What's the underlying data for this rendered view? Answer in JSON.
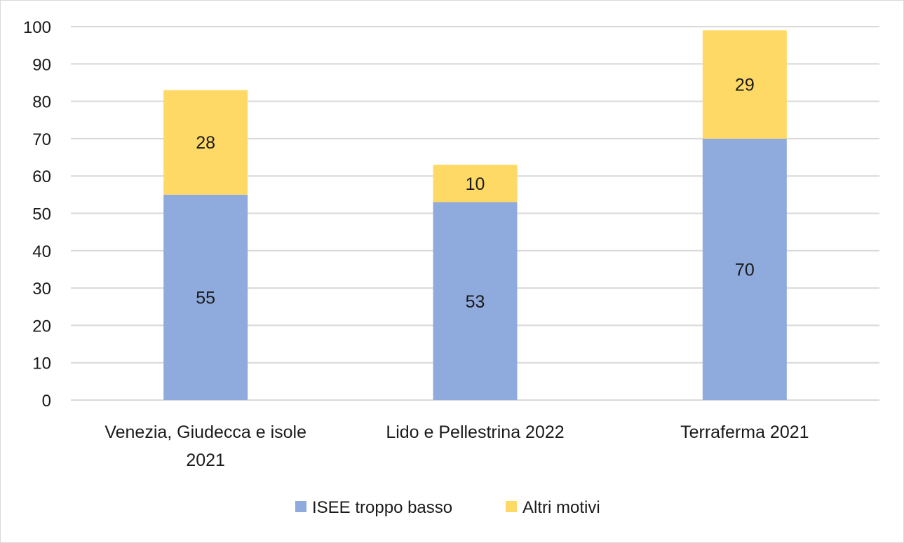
{
  "chart_data": {
    "type": "bar",
    "stacked": true,
    "categories": [
      "Venezia, Giudecca e isole 2021",
      "Lido e Pellestrina 2022",
      "Terraferma 2021"
    ],
    "category_lines": [
      [
        "Venezia, Giudecca e isole",
        "2021"
      ],
      [
        "Lido e Pellestrina 2022"
      ],
      [
        "Terraferma 2021"
      ]
    ],
    "series": [
      {
        "name": "ISEE troppo basso",
        "values": [
          55,
          53,
          70
        ],
        "color": "#8faadc"
      },
      {
        "name": "Altri motivi",
        "values": [
          28,
          10,
          29
        ],
        "color": "#ffd966"
      }
    ],
    "ylim": [
      0,
      100
    ],
    "yticks": [
      0,
      10,
      20,
      30,
      40,
      50,
      60,
      70,
      80,
      90,
      100
    ],
    "grid": true,
    "gridColor": "#d9d9d9",
    "legend_position": "bottom"
  }
}
